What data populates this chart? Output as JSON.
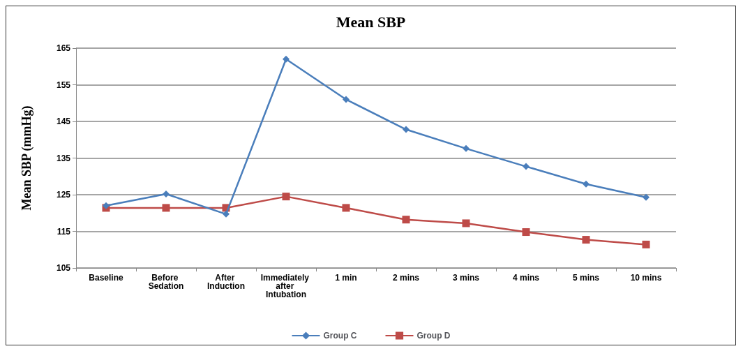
{
  "chart_data": {
    "type": "line",
    "title": "Mean SBP",
    "ylabel": "Mean SBP (mmHg)",
    "categories": [
      "Baseline",
      "Before Sedation",
      "After Induction",
      "Immediately after Intubation",
      "1 min",
      "2 mins",
      "3 mins",
      "4 mins",
      "5 mins",
      "10 mins"
    ],
    "series": [
      {
        "name": "Group C",
        "color": "#4a7ebb",
        "marker": "diamond",
        "values": [
          122,
          125.2,
          119.7,
          162,
          151,
          142.8,
          137.6,
          132.7,
          127.9,
          124.3
        ]
      },
      {
        "name": "Group D",
        "color": "#be4b48",
        "marker": "square",
        "values": [
          121.4,
          121.4,
          121.4,
          124.5,
          121.4,
          118.2,
          117.2,
          114.8,
          112.7,
          111.4
        ]
      }
    ],
    "ylim": [
      105,
      165
    ],
    "yticks": [
      105,
      115,
      125,
      135,
      145,
      155,
      165
    ],
    "grid": "y",
    "legend": "bottom"
  }
}
